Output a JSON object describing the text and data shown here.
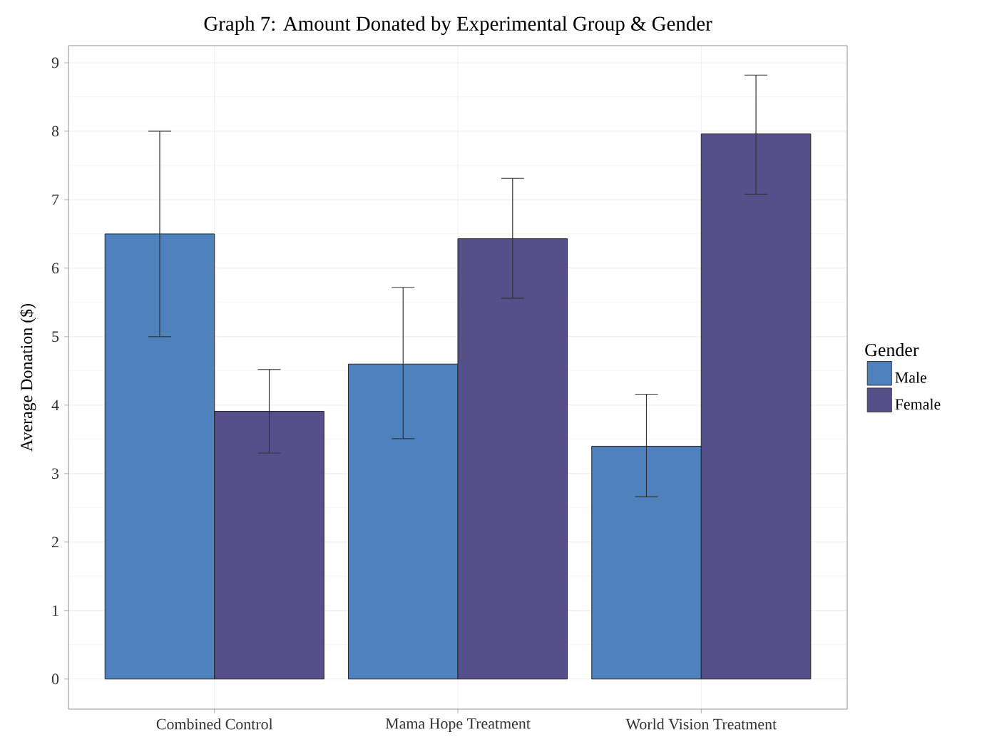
{
  "chart_data": {
    "type": "bar",
    "title": "Graph 7: Amount Donated by Experimental Group & Gender",
    "ylabel": "Average Donation ($)",
    "legend_title": "Gender",
    "categories": [
      "Combined Control",
      "Mama Hope Treatment",
      "World Vision Treatment"
    ],
    "series": [
      {
        "name": "Male",
        "color": "#4f81bd",
        "values": [
          6.5,
          4.6,
          3.4
        ],
        "errors": [
          [
            5.0,
            8.0
          ],
          [
            3.51,
            5.72
          ],
          [
            2.66,
            4.16
          ]
        ]
      },
      {
        "name": "Female",
        "color": "#55508a",
        "values": [
          3.91,
          6.43,
          7.96
        ],
        "errors": [
          [
            3.3,
            4.52
          ],
          [
            5.56,
            7.31
          ],
          [
            7.08,
            8.82
          ]
        ]
      }
    ],
    "ylim": [
      -0.44,
      9.25
    ],
    "yticks": [
      0,
      1,
      2,
      3,
      4,
      5,
      6,
      7,
      8,
      9
    ],
    "grid": true,
    "legend": "right"
  }
}
